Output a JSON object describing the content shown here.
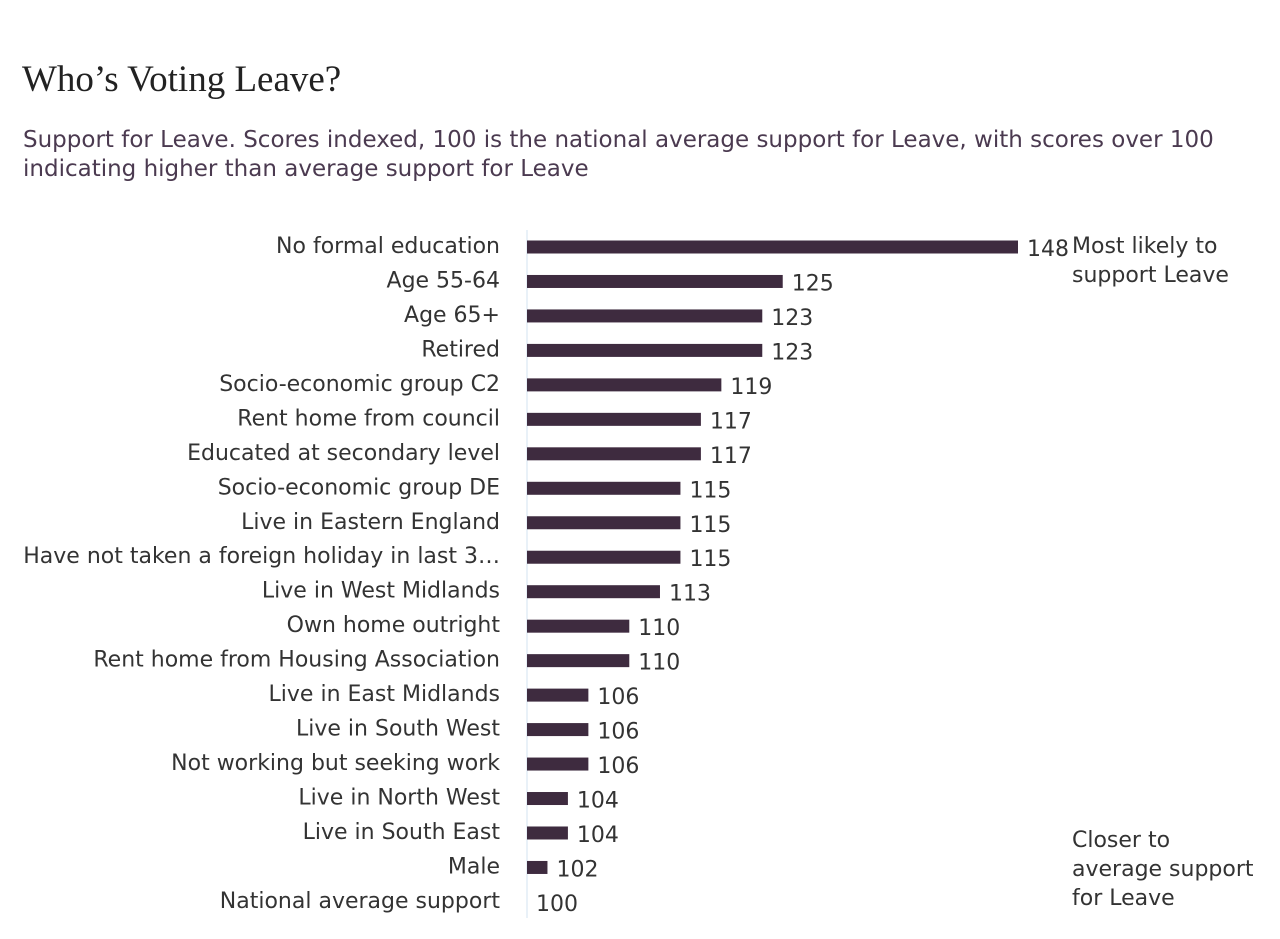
{
  "chart_data": {
    "type": "hbar",
    "title": "Who’s Voting Leave?",
    "subtitle": "Support for Leave. Scores indexed, 100 is the national average support for Leave, with scores over 100 indicating higher than average support for Leave",
    "categories": [
      "No formal education",
      "Age 55-64",
      "Age 65+",
      "Retired",
      "Socio-economic group C2",
      "Rent home from council",
      "Educated at secondary level",
      "Socio-economic group DE",
      "Live in Eastern England",
      "Have not taken a foreign holiday in last 3…",
      "Live in West Midlands",
      "Own home outright",
      "Rent home from Housing Association",
      "Live in East Midlands",
      "Live in South West",
      "Not working but seeking work",
      "Live in North West",
      "Live in South East",
      "Male",
      "National average support"
    ],
    "values": [
      148,
      125,
      123,
      123,
      119,
      117,
      117,
      115,
      115,
      115,
      113,
      110,
      110,
      106,
      106,
      106,
      104,
      104,
      102,
      100
    ],
    "color": "#3e2b3f",
    "xlim": [
      100,
      148
    ],
    "annotations": [
      "Most likely to support Leave",
      "Closer to average support for Leave"
    ]
  }
}
